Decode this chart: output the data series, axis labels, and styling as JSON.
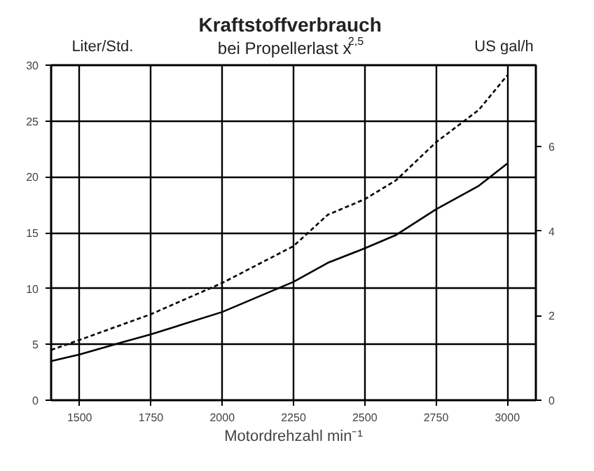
{
  "chart_data": {
    "type": "line",
    "title": "Kraftstoffverbrauch",
    "subtitle": "bei Propellerlast x$^{2,5}$",
    "xlabel": "Motordrehzahl min⁻¹",
    "ylabel": "Liter/Std.",
    "y2label": "US gal/h",
    "xlim": [
      1400,
      3100
    ],
    "xticks": [
      1500,
      1750,
      2000,
      2250,
      2500,
      2750,
      3000
    ],
    "ylim": [
      0,
      30
    ],
    "yticks": [
      0,
      5,
      10,
      15,
      20,
      25,
      30
    ],
    "y2lim": [
      0,
      7.93
    ],
    "y2ticks": [
      0,
      2,
      4,
      6
    ],
    "grid": true,
    "series": [
      {
        "color": "#000000",
        "line_style": "dashed",
        "x": [
          1400,
          1500,
          1750,
          2000,
          2250,
          2370,
          2500,
          2610,
          2750,
          2900,
          3000
        ],
        "values": [
          4.5,
          5.4,
          7.7,
          10.5,
          13.8,
          16.6,
          18.0,
          19.7,
          23.1,
          26.0,
          29.1
        ]
      },
      {
        "color": "#000000",
        "line_style": "solid",
        "x": [
          1400,
          1500,
          1650,
          1750,
          2000,
          2250,
          2370,
          2500,
          2610,
          2750,
          2900,
          3000
        ],
        "values": [
          3.5,
          4.1,
          5.2,
          5.9,
          7.9,
          10.6,
          12.3,
          13.6,
          14.8,
          17.1,
          19.2,
          21.2
        ]
      }
    ]
  }
}
